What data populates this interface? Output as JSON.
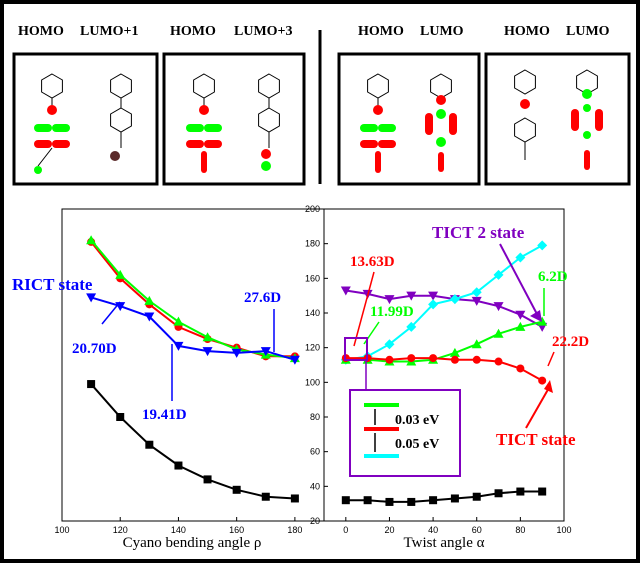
{
  "orbitals": {
    "headers": [
      "HOMO",
      "LUMO+1",
      "HOMO",
      "LUMO+3",
      "HOMO",
      "LUMO",
      "HOMO",
      "LUMO"
    ]
  },
  "colors": {
    "red": "#ff0000",
    "green": "#00ff00",
    "blue": "#0000ff",
    "black": "#000000",
    "cyan": "#00ffff",
    "purple": "#8000c0",
    "brown": "#5a2a2a"
  },
  "chart_data": [
    {
      "type": "line",
      "xlabel": "Cyano bending angle ρ",
      "ylabel": "",
      "xlim": [
        100,
        190
      ],
      "ylim": [
        20,
        200
      ],
      "xticks": [
        100,
        120,
        140,
        160,
        180
      ],
      "grid": false,
      "series": [
        {
          "color": "#ff0000",
          "marker": "circle",
          "x": [
            110,
            120,
            130,
            140,
            150,
            160,
            170,
            180
          ],
          "y": [
            181,
            160,
            145,
            132,
            125,
            120,
            115,
            115
          ]
        },
        {
          "color": "#00ff00",
          "marker": "triangle-up",
          "x": [
            110,
            120,
            130,
            140,
            150,
            160,
            170,
            180
          ],
          "y": [
            182,
            162,
            147,
            135,
            126,
            119,
            116,
            114
          ]
        },
        {
          "color": "#0000ff",
          "marker": "triangle-down",
          "x": [
            110,
            120,
            130,
            140,
            150,
            160,
            170,
            180
          ],
          "y": [
            149,
            144,
            138,
            121,
            118,
            117,
            118,
            113
          ]
        },
        {
          "color": "#000000",
          "marker": "square",
          "x": [
            110,
            120,
            130,
            140,
            150,
            160,
            170,
            180
          ],
          "y": [
            99,
            80,
            64,
            52,
            44,
            38,
            34,
            33
          ]
        }
      ],
      "annotations": [
        {
          "text": "RICT state",
          "color": "#0000ff"
        },
        {
          "text": "20.70D",
          "color": "#0000ff"
        },
        {
          "text": "19.41D",
          "color": "#0000ff"
        },
        {
          "text": "27.6D",
          "color": "#0000ff"
        }
      ]
    },
    {
      "type": "line",
      "xlabel": "Twist angle α",
      "ylabel": "",
      "xlim": [
        -10,
        100
      ],
      "ylim": [
        20,
        200
      ],
      "xticks": [
        0,
        20,
        40,
        60,
        80,
        100
      ],
      "yticks": [
        20,
        40,
        60,
        80,
        100,
        120,
        140,
        160,
        180,
        200
      ],
      "grid": false,
      "series": [
        {
          "color": "#8000c0",
          "marker": "triangle-down",
          "x": [
            0,
            10,
            20,
            30,
            40,
            50,
            60,
            70,
            80,
            90
          ],
          "y": [
            153,
            151,
            148,
            150,
            150,
            148,
            147,
            144,
            139,
            132
          ]
        },
        {
          "color": "#00ffff",
          "marker": "diamond",
          "x": [
            0,
            10,
            20,
            30,
            40,
            50,
            60,
            70,
            80,
            90
          ],
          "y": [
            113,
            115,
            122,
            132,
            145,
            148,
            152,
            162,
            172,
            179
          ]
        },
        {
          "color": "#00ff00",
          "marker": "triangle-up",
          "x": [
            0,
            10,
            20,
            30,
            40,
            50,
            60,
            70,
            80,
            90
          ],
          "y": [
            113,
            113,
            112,
            112,
            113,
            117,
            122,
            128,
            132,
            135
          ]
        },
        {
          "color": "#ff0000",
          "marker": "circle",
          "x": [
            0,
            10,
            20,
            30,
            40,
            50,
            60,
            70,
            80,
            90
          ],
          "y": [
            114,
            114,
            113,
            114,
            114,
            113,
            113,
            112,
            108,
            101
          ]
        },
        {
          "color": "#000000",
          "marker": "square",
          "x": [
            0,
            10,
            20,
            30,
            40,
            50,
            60,
            70,
            80,
            90
          ],
          "y": [
            32,
            32,
            31,
            31,
            32,
            33,
            34,
            36,
            37,
            37
          ]
        }
      ],
      "annotations": [
        {
          "text": "TICT 2 state",
          "color": "#8000c0"
        },
        {
          "text": "13.63D",
          "color": "#ff0000"
        },
        {
          "text": "11.99D",
          "color": "#00ff00"
        },
        {
          "text": "6.2D",
          "color": "#00ff00"
        },
        {
          "text": "22.2D",
          "color": "#ff0000"
        },
        {
          "text": "TICT  state",
          "color": "#ff0000"
        }
      ],
      "inset": {
        "gap_top": "0.03 eV",
        "gap_bottom": "0.05 eV"
      }
    }
  ]
}
